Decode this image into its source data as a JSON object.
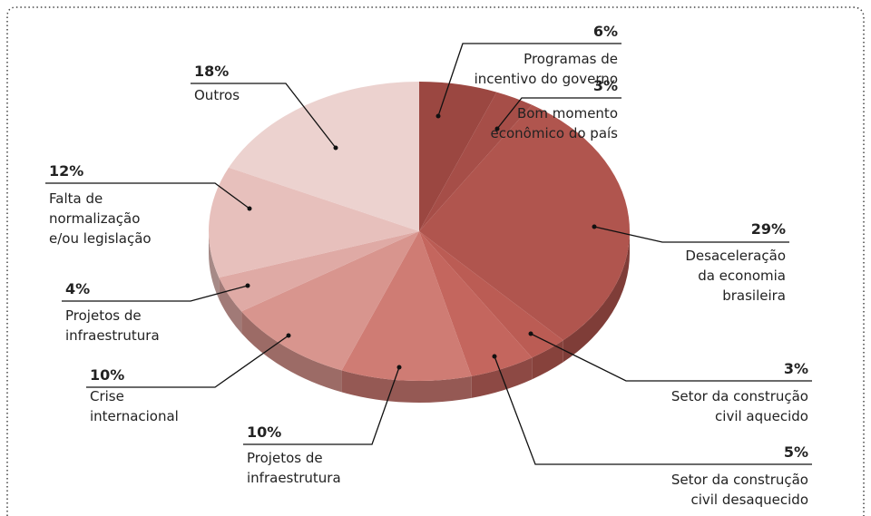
{
  "chart_data": {
    "type": "pie",
    "labels": [
      [
        "Programas de",
        "incentivo do governo"
      ],
      [
        "Bom momento",
        "econômico do país"
      ],
      [
        "Desaceleração",
        "da economia",
        "brasileira"
      ],
      [
        "Setor da construção",
        "civil aquecido"
      ],
      [
        "Setor da construção",
        "civil desaquecido"
      ],
      [
        "Projetos de",
        "infraestrutura"
      ],
      [
        "Crise",
        "internacional"
      ],
      [
        "Projetos de",
        "infraestrutura"
      ],
      [
        "Falta de",
        "normalização",
        "e/ou legislação"
      ],
      [
        "Outros"
      ]
    ],
    "values": [
      6,
      3,
      29,
      3,
      5,
      10,
      10,
      4,
      12,
      18
    ],
    "value_labels": [
      "6%",
      "3%",
      "29%",
      "3%",
      "5%",
      "10%",
      "10%",
      "4%",
      "12%",
      "18%"
    ],
    "colors": [
      "#9b4741",
      "#a64e48",
      "#b0554e",
      "#bb5c54",
      "#c4665e",
      "#cf7c74",
      "#d8958e",
      "#dfaaa5",
      "#e7c0bc",
      "#ecd2cf"
    ]
  }
}
